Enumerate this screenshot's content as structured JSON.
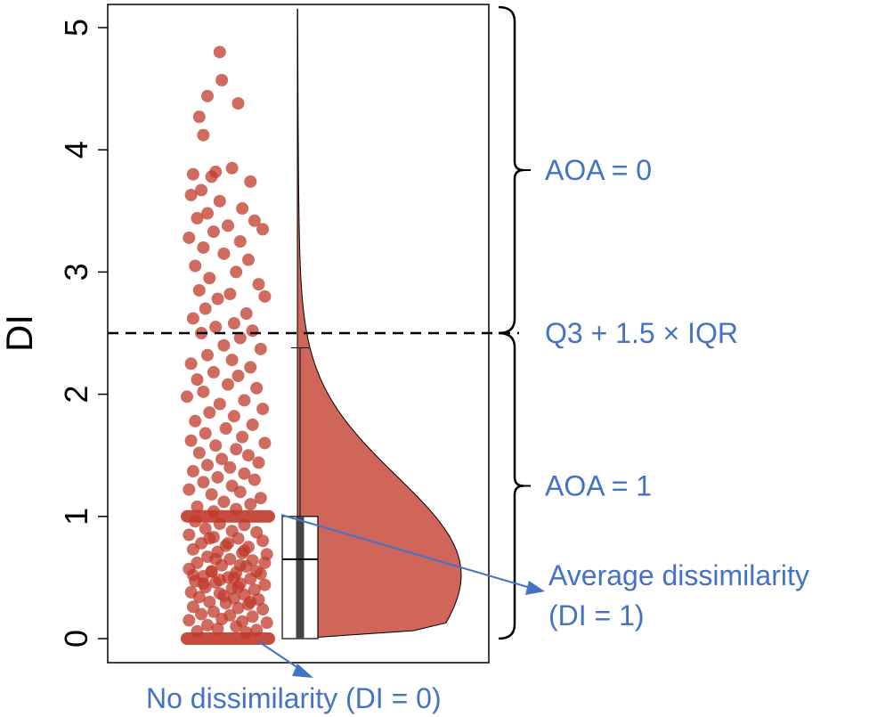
{
  "chart_data": {
    "type": "raincloud",
    "ylabel": "DI",
    "ylim": [
      0,
      5.15
    ],
    "y_ticks": [
      0,
      1,
      2,
      3,
      4,
      5
    ],
    "y_tick_labels": [
      "0",
      "1",
      "2",
      "3",
      "4",
      "5"
    ],
    "points_color": "#c0392b",
    "density_color": "#d0665a",
    "annotation_color": "#4472c4",
    "threshold": {
      "value": 2.5,
      "label": "Q3 + 1.5 × IQR"
    },
    "box": {
      "q1": 0,
      "median": 0.65,
      "q3": 1.0,
      "whisker_high": 2.38,
      "whisker_low": 0
    },
    "brackets": [
      {
        "label": "AOA = 0",
        "from": 2.5,
        "to": 5.2
      },
      {
        "label": "AOA = 1",
        "from": 0,
        "to": 2.5
      }
    ],
    "annotations": {
      "average_line1": "Average dissimilarity",
      "average_line2": "(DI = 1)",
      "none": "No dissimilarity (DI = 0)"
    },
    "points": [
      [
        -0.2,
        4.8
      ],
      [
        -0.15,
        4.57
      ],
      [
        0.25,
        4.38
      ],
      [
        -0.5,
        4.44
      ],
      [
        -0.7,
        4.27
      ],
      [
        -0.6,
        4.12
      ],
      [
        0.1,
        3.85
      ],
      [
        -0.3,
        3.82
      ],
      [
        -0.85,
        3.8
      ],
      [
        -0.4,
        3.78
      ],
      [
        0.55,
        3.74
      ],
      [
        -0.65,
        3.67
      ],
      [
        -0.9,
        3.63
      ],
      [
        -0.2,
        3.58
      ],
      [
        0.35,
        3.52
      ],
      [
        -0.5,
        3.48
      ],
      [
        -0.75,
        3.44
      ],
      [
        0.65,
        3.42
      ],
      [
        0.0,
        3.38
      ],
      [
        -0.35,
        3.33
      ],
      [
        0.85,
        3.35
      ],
      [
        -0.95,
        3.28
      ],
      [
        0.3,
        3.25
      ],
      [
        -0.6,
        3.2
      ],
      [
        -0.1,
        3.15
      ],
      [
        0.5,
        3.1
      ],
      [
        -0.8,
        3.05
      ],
      [
        0.2,
        3.0
      ],
      [
        -0.45,
        2.95
      ],
      [
        0.75,
        2.9
      ],
      [
        -0.7,
        2.85
      ],
      [
        0.05,
        2.82
      ],
      [
        -0.25,
        2.78
      ],
      [
        0.9,
        2.8
      ],
      [
        -0.55,
        2.7
      ],
      [
        0.45,
        2.66
      ],
      [
        -0.85,
        2.62
      ],
      [
        0.15,
        2.58
      ],
      [
        -0.3,
        2.55
      ],
      [
        0.6,
        2.52
      ],
      [
        -0.65,
        2.5
      ],
      [
        0.3,
        2.46
      ],
      [
        -0.1,
        2.4
      ],
      [
        0.8,
        2.37
      ],
      [
        -0.5,
        2.32
      ],
      [
        0.1,
        2.28
      ],
      [
        -0.9,
        2.25
      ],
      [
        0.55,
        2.22
      ],
      [
        -0.35,
        2.18
      ],
      [
        0.25,
        2.15
      ],
      [
        -0.75,
        2.12
      ],
      [
        0.0,
        2.08
      ],
      [
        0.7,
        2.05
      ],
      [
        -0.6,
        2.02
      ],
      [
        -1.0,
        1.98
      ],
      [
        0.4,
        1.95
      ],
      [
        -0.2,
        1.92
      ],
      [
        0.85,
        1.88
      ],
      [
        -0.45,
        1.85
      ],
      [
        0.15,
        1.82
      ],
      [
        -0.8,
        1.78
      ],
      [
        0.6,
        1.75
      ],
      [
        -0.05,
        1.72
      ],
      [
        -0.55,
        1.68
      ],
      [
        0.35,
        1.65
      ],
      [
        -0.9,
        1.62
      ],
      [
        0.9,
        1.6
      ],
      [
        -0.3,
        1.58
      ],
      [
        0.2,
        1.55
      ],
      [
        -0.7,
        1.52
      ],
      [
        0.5,
        1.5
      ],
      [
        -0.15,
        1.47
      ],
      [
        0.75,
        1.44
      ],
      [
        -0.5,
        1.42
      ],
      [
        0.05,
        1.4
      ],
      [
        -0.85,
        1.37
      ],
      [
        0.4,
        1.35
      ],
      [
        -0.25,
        1.32
      ],
      [
        0.65,
        1.3
      ],
      [
        -0.6,
        1.28
      ],
      [
        0.1,
        1.25
      ],
      [
        -0.95,
        1.22
      ],
      [
        0.3,
        1.2
      ],
      [
        -0.4,
        1.18
      ],
      [
        0.8,
        1.15
      ],
      [
        -0.1,
        1.12
      ],
      [
        0.55,
        1.1
      ],
      [
        -0.75,
        1.08
      ],
      [
        0.2,
        1.06
      ],
      [
        -0.35,
        1.04
      ],
      [
        -0.8,
        0.96
      ],
      [
        -0.2,
        0.94
      ],
      [
        0.4,
        0.93
      ],
      [
        -0.55,
        0.9
      ],
      [
        0.1,
        0.88
      ],
      [
        0.7,
        0.87
      ],
      [
        -0.95,
        0.85
      ],
      [
        -0.35,
        0.83
      ],
      [
        0.25,
        0.82
      ],
      [
        0.85,
        0.8
      ],
      [
        -0.65,
        0.78
      ],
      [
        -0.05,
        0.76
      ],
      [
        0.5,
        0.75
      ],
      [
        -0.85,
        0.73
      ],
      [
        -0.25,
        0.71
      ],
      [
        0.35,
        0.7
      ],
      [
        0.95,
        0.69
      ],
      [
        -0.5,
        0.67
      ],
      [
        0.05,
        0.65
      ],
      [
        0.6,
        0.64
      ],
      [
        -0.75,
        0.62
      ],
      [
        -0.15,
        0.6
      ],
      [
        0.45,
        0.59
      ],
      [
        -0.95,
        0.57
      ],
      [
        -0.4,
        0.55
      ],
      [
        0.2,
        0.54
      ],
      [
        0.8,
        0.53
      ],
      [
        -0.6,
        0.51
      ],
      [
        0.0,
        0.5
      ],
      [
        0.55,
        0.49
      ],
      [
        -0.8,
        0.47
      ],
      [
        -0.3,
        0.46
      ],
      [
        0.3,
        0.45
      ],
      [
        0.9,
        0.44
      ],
      [
        -0.55,
        0.42
      ],
      [
        0.1,
        0.41
      ],
      [
        0.65,
        0.4
      ],
      [
        -0.9,
        0.38
      ],
      [
        -0.2,
        0.37
      ],
      [
        0.4,
        0.36
      ],
      [
        -0.7,
        0.34
      ],
      [
        0.15,
        0.33
      ],
      [
        0.75,
        0.32
      ],
      [
        -0.45,
        0.3
      ],
      [
        -0.05,
        0.29
      ],
      [
        0.5,
        0.28
      ],
      [
        -0.85,
        0.26
      ],
      [
        0.25,
        0.25
      ],
      [
        0.85,
        0.24
      ],
      [
        -0.35,
        0.22
      ],
      [
        -0.65,
        0.2
      ],
      [
        0.05,
        0.19
      ],
      [
        0.6,
        0.18
      ],
      [
        -0.15,
        0.16
      ],
      [
        -0.95,
        0.15
      ],
      [
        0.35,
        0.14
      ],
      [
        0.95,
        0.13
      ],
      [
        -0.5,
        0.11
      ],
      [
        0.2,
        0.1
      ],
      [
        -0.25,
        0.08
      ],
      [
        0.7,
        0.07
      ],
      [
        -0.75,
        0.06
      ],
      [
        0.45,
        0.05
      ],
      [
        -0.4,
        0.55
      ],
      [
        0.3,
        0.6
      ],
      [
        -0.1,
        0.35
      ],
      [
        0.55,
        0.3
      ],
      [
        -0.6,
        0.45
      ],
      [
        0.15,
        0.5
      ],
      [
        0.7,
        0.55
      ],
      [
        -0.3,
        0.65
      ],
      [
        0.4,
        0.72
      ],
      [
        -0.85,
        0.52
      ],
      [
        0.0,
        0.78
      ],
      [
        0.9,
        0.62
      ],
      [
        -0.45,
        0.82
      ],
      [
        0.25,
        0.42
      ],
      [
        -0.2,
        0.48
      ]
    ],
    "band_zero": {
      "y": 0,
      "from": -1.0,
      "to": 1.0
    },
    "band_one": {
      "y": 1,
      "from": -1.0,
      "to": 1.0
    }
  }
}
